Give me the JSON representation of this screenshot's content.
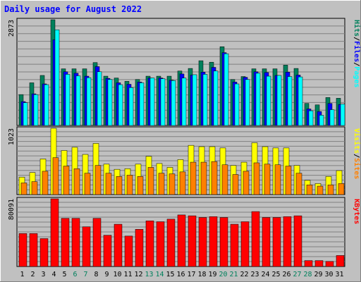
{
  "chart_data": {
    "type": "bar",
    "title": "Daily usage for August 2022",
    "categories": [
      "1",
      "2",
      "3",
      "4",
      "5",
      "6",
      "7",
      "8",
      "9",
      "10",
      "11",
      "12",
      "13",
      "14",
      "15",
      "16",
      "17",
      "18",
      "19",
      "20",
      "21",
      "22",
      "23",
      "24",
      "25",
      "26",
      "27",
      "28",
      "29",
      "30",
      "31"
    ],
    "weekend_days": [
      "6",
      "7",
      "13",
      "14",
      "20",
      "21",
      "27",
      "28"
    ],
    "panels": [
      {
        "id": "hits-files-pages",
        "ymax_label": "2873",
        "ymax": 2873,
        "legend": [
          "Pages",
          "/",
          "Files",
          "/",
          "Hits"
        ],
        "series": [
          {
            "name": "Hits",
            "color": "#00805c",
            "values": [
              840,
              1160,
              1360,
              2873,
              1540,
              1540,
              1540,
              1710,
              1340,
              1290,
              1200,
              1250,
              1340,
              1340,
              1340,
              1480,
              1550,
              1760,
              1720,
              2140,
              1250,
              1330,
              1540,
              1540,
              1540,
              1640,
              1550,
              600,
              560,
              760,
              740
            ]
          },
          {
            "name": "Files",
            "color": "#0000ff",
            "values": [
              650,
              860,
              1130,
              2330,
              1460,
              1420,
              1340,
              1600,
              1280,
              1160,
              1120,
              1180,
              1290,
              1290,
              1230,
              1400,
              1370,
              1450,
              1580,
              1980,
              1180,
              1310,
              1460,
              1440,
              1360,
              1450,
              1370,
              450,
              380,
              600,
              570
            ]
          },
          {
            "name": "Pages",
            "color": "#00ffff",
            "values": [
              620,
              840,
              1110,
              2600,
              1390,
              1350,
              1300,
              1460,
              1250,
              1110,
              1030,
              1160,
              1290,
              1270,
              1220,
              1290,
              1380,
              1390,
              1480,
              1950,
              1130,
              1250,
              1420,
              1340,
              1360,
              1330,
              1320,
              400,
              280,
              430,
              580
            ]
          }
        ]
      },
      {
        "id": "visits-sites",
        "ymax_label": "1023",
        "ymax": 1023,
        "legend": [
          "Sites",
          "/",
          "Visits"
        ],
        "series": [
          {
            "name": "Visits",
            "color": "#ffff00",
            "values": [
              270,
              340,
              550,
              1023,
              680,
              730,
              620,
              790,
              470,
              390,
              400,
              470,
              590,
              480,
              420,
              540,
              760,
              740,
              740,
              720,
              450,
              500,
              800,
              740,
              720,
              720,
              450,
              220,
              170,
              280,
              370
            ]
          },
          {
            "name": "Sites",
            "color": "#ff8000",
            "values": [
              180,
              200,
              360,
              570,
              440,
              400,
              330,
              450,
              330,
              280,
              300,
              280,
              420,
              330,
              320,
              350,
              500,
              500,
              510,
              460,
              310,
              360,
              490,
              470,
              460,
              440,
              330,
              150,
              130,
              150,
              170
            ]
          }
        ]
      },
      {
        "id": "kbytes",
        "ymax_label": "80091",
        "ymax": 80091,
        "legend": [
          "KBytes"
        ],
        "series": [
          {
            "name": "KBytes",
            "color": "#ff0000",
            "values": [
              39000,
              39000,
              33000,
              80091,
              57000,
              57000,
              47000,
              57000,
              37000,
              50000,
              36000,
              44000,
              54000,
              53000,
              56000,
              61000,
              60000,
              58000,
              59000,
              58000,
              50000,
              53000,
              65000,
              58000,
              58000,
              59000,
              60000,
              7000,
              7000,
              6000,
              13000
            ]
          }
        ]
      }
    ]
  }
}
